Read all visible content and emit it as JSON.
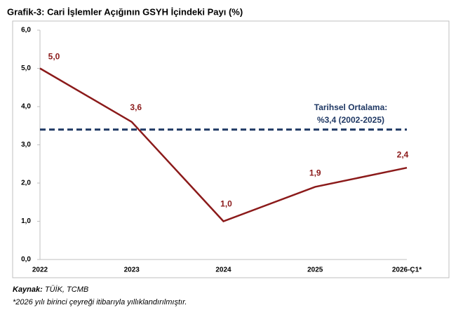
{
  "chart_data": {
    "type": "line",
    "title": "Grafik-3: Cari İşlemler Açığının GSYH İçindeki Payı (%)",
    "categories": [
      "2022",
      "2023",
      "2024",
      "2025",
      "2026-Ç1*"
    ],
    "values": [
      5.0,
      3.6,
      1.0,
      1.9,
      2.4
    ],
    "value_labels": [
      "5,0",
      "3,6",
      "1,0",
      "1,9",
      "2,4"
    ],
    "color": "#8b1a1a",
    "ylim": [
      0,
      6
    ],
    "yticks": [
      {
        "value": 0,
        "label": "0,0"
      },
      {
        "value": 1,
        "label": "1,0"
      },
      {
        "value": 2,
        "label": "2,0"
      },
      {
        "value": 3,
        "label": "3,0"
      },
      {
        "value": 4,
        "label": "4,0"
      },
      {
        "value": 5,
        "label": "5,0"
      },
      {
        "value": 6,
        "label": "6,0"
      }
    ],
    "reference_line": {
      "value": 3.4,
      "color": "#1f3864",
      "label": [
        "Tarihsel Ortalama:",
        "%3,4 (2002-2025)"
      ]
    },
    "source_label": "Kaynak:",
    "source": "TÜİK, TCMB",
    "note": "*2026 yılı birinci çeyreği itibarıyla yıllıklandırılmıştır."
  }
}
